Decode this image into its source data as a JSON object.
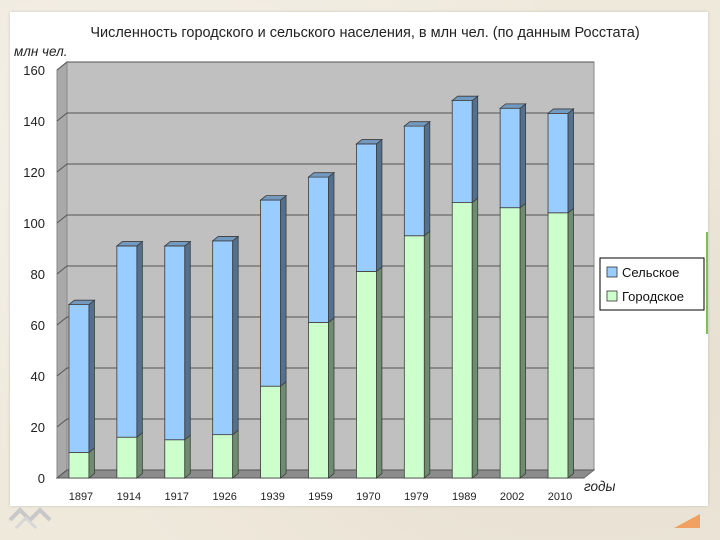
{
  "chart_data": {
    "type": "bar",
    "stacked": true,
    "title": "Численность городского и сельского населения, в млн чел. (по данным Росстата)",
    "ylabel": "млн чел.",
    "xlabel": "годы",
    "categories": [
      "1897",
      "1914",
      "1917",
      "1926",
      "1939",
      "1959",
      "1970",
      "1979",
      "1989",
      "2002",
      "2010"
    ],
    "series": [
      {
        "name": "Городское",
        "color": "#ccffcc",
        "values": [
          10,
          16,
          15,
          17,
          36,
          61,
          81,
          95,
          108,
          106,
          104
        ]
      },
      {
        "name": "Сельское",
        "color": "#99ccff",
        "values": [
          58,
          75,
          76,
          76,
          73,
          57,
          50,
          43,
          40,
          39,
          39
        ]
      }
    ],
    "ylim": [
      0,
      160
    ],
    "yticks": [
      "0",
      "20",
      "40",
      "60",
      "80",
      "100",
      "120",
      "140",
      "160"
    ],
    "grid": true,
    "legend": "right"
  }
}
